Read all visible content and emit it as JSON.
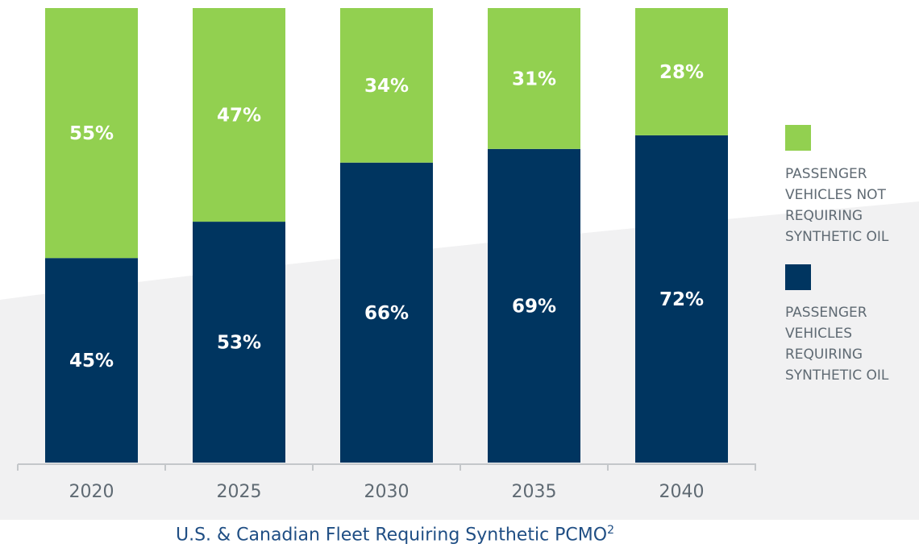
{
  "colors": {
    "green": "#92d050",
    "navy": "#003560",
    "background_band": "#f1f1f2",
    "axis": "#c4c7ca",
    "tick_text": "#5f6a73",
    "caption_text": "#1f4e84"
  },
  "caption": {
    "text": "U.S. & Canadian Fleet Requiring Synthetic PCMO",
    "superscript": "2"
  },
  "chart_data": {
    "type": "bar",
    "stacked": true,
    "categories": [
      "2020",
      "2025",
      "2030",
      "2035",
      "2040"
    ],
    "series": [
      {
        "name": "PASSENGER VEHICLES REQUIRING SYNTHETIC OIL",
        "color": "#003560",
        "values": [
          45,
          53,
          66,
          69,
          72
        ],
        "labels": [
          "45%",
          "53%",
          "66%",
          "69%",
          "72%"
        ]
      },
      {
        "name": "PASSENGER VEHICLES NOT REQUIRING SYNTHETIC OIL",
        "color": "#92d050",
        "values": [
          55,
          47,
          34,
          31,
          28
        ],
        "labels": [
          "55%",
          "47%",
          "34%",
          "31%",
          "28%"
        ]
      }
    ],
    "ylim": [
      0,
      100
    ],
    "legend_position": "right",
    "legend": [
      {
        "series_index": 1,
        "lines": [
          "PASSENGER",
          "VEHICLES NOT",
          "REQUIRING",
          "SYNTHETIC OIL"
        ]
      },
      {
        "series_index": 0,
        "lines": [
          "PASSENGER",
          "VEHICLES",
          "REQUIRING",
          "SYNTHETIC OIL"
        ]
      }
    ]
  }
}
